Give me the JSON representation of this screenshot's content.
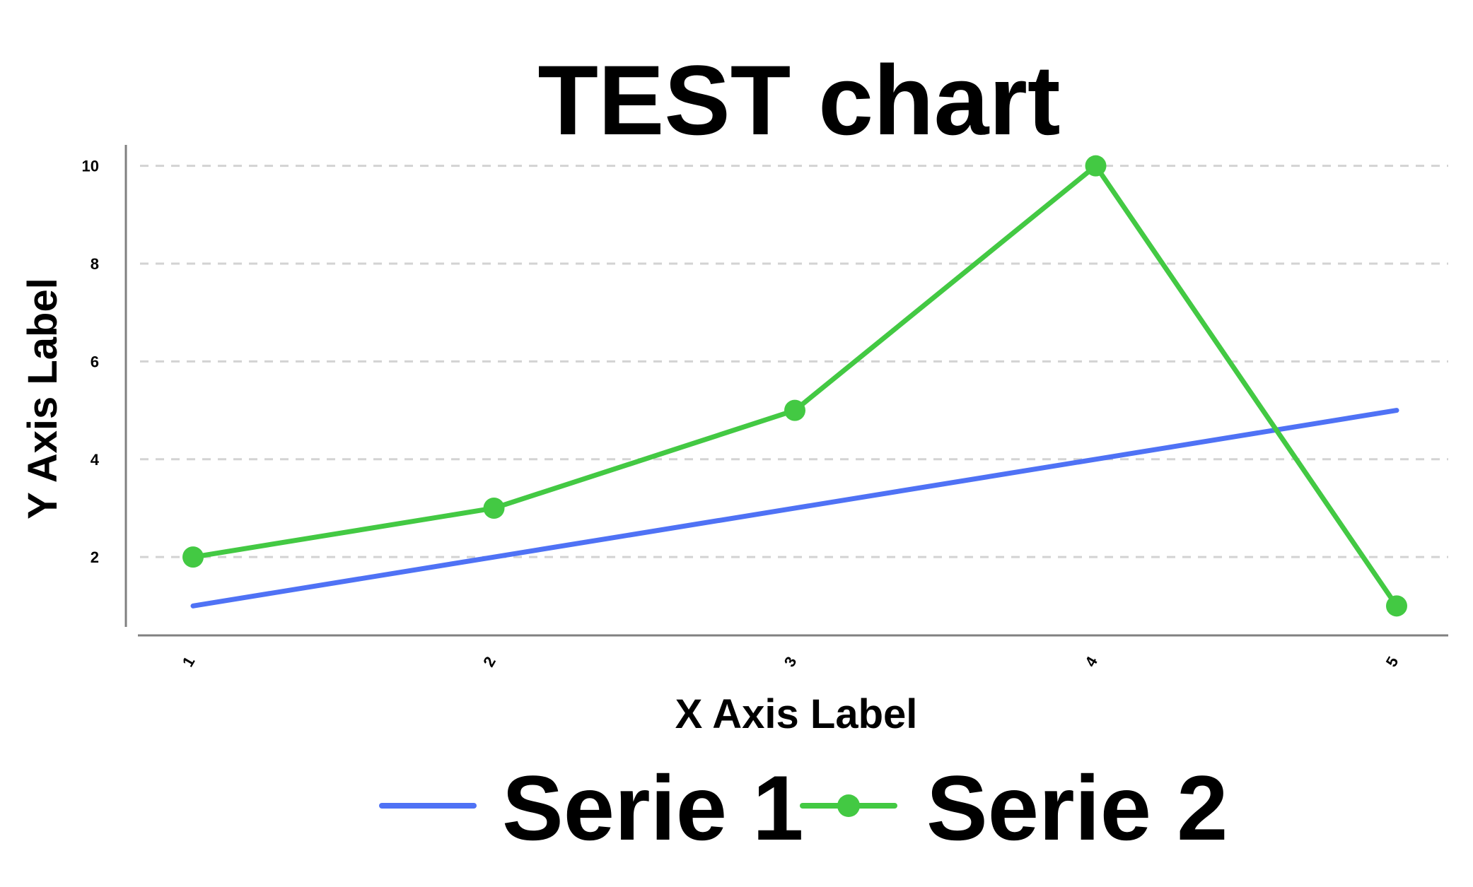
{
  "chart_data": {
    "type": "line",
    "title": "TEST chart",
    "xlabel": "X Axis Label",
    "ylabel": "Y Axis Label",
    "x": [
      1,
      2,
      3,
      4,
      5
    ],
    "xticks": [
      "1",
      "2",
      "3",
      "4",
      "5"
    ],
    "yticks": [
      2,
      4,
      6,
      8,
      10
    ],
    "ylim": [
      0.6,
      10.4
    ],
    "grid": "horizontal-dashed",
    "legend_position": "bottom",
    "series": [
      {
        "name": "Serie 1",
        "values": [
          1,
          2,
          3,
          4,
          5
        ],
        "color": "#4f72f5",
        "markers": false
      },
      {
        "name": "Serie 2",
        "values": [
          2,
          3,
          5,
          10,
          1
        ],
        "color": "#43c943",
        "markers": true
      }
    ]
  }
}
